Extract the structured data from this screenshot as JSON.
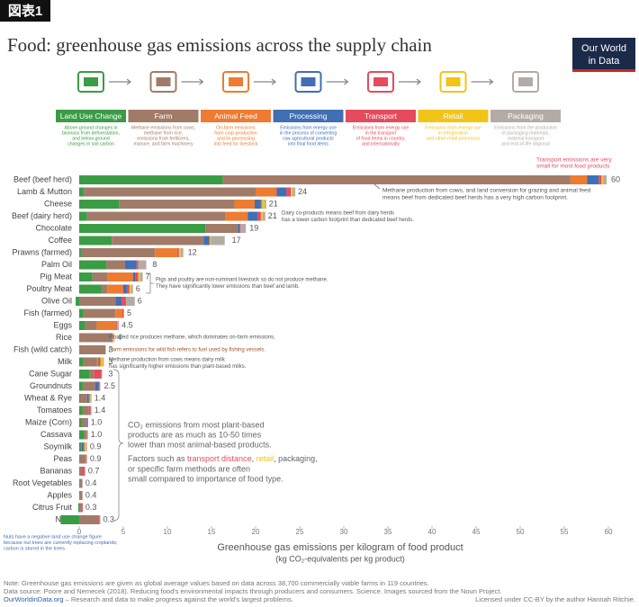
{
  "header": {
    "badge": "図表1",
    "title": "Food: greenhouse gas emissions across the supply chain",
    "logo_lines": [
      "Our World",
      "in Data"
    ]
  },
  "chart_data": {
    "type": "stacked-bar-horizontal",
    "categories": [
      "Beef (beef herd)",
      "Lamb & Mutton",
      "Cheese",
      "Beef (dairy herd)",
      "Chocolate",
      "Coffee",
      "Prawns (farmed)",
      "Palm Oil",
      "Pig Meat",
      "Poultry Meat",
      "Olive Oil",
      "Fish (farmed)",
      "Eggs",
      "Rice",
      "Fish (wild catch)",
      "Milk",
      "Cane Sugar",
      "Groundnuts",
      "Wheat & Rye",
      "Tomatoes",
      "Maize (Corn)",
      "Cassava",
      "Soymilk",
      "Peas",
      "Bananas",
      "Root Vegetables",
      "Apples",
      "Citrus Fruit",
      "Nuts"
    ],
    "series": [
      {
        "name": "Land Use Change",
        "color": "#3a9c44",
        "description": [
          "Above-ground changes in",
          "biomass from deforestation,",
          "and below-ground",
          "changes in soil carbon"
        ],
        "values": [
          16.3,
          0.5,
          4.5,
          0.9,
          14.3,
          3.7,
          0.2,
          3.1,
          1.5,
          2.5,
          -0.4,
          0.5,
          0.7,
          0,
          0,
          0.5,
          1.2,
          0.4,
          0.1,
          0.4,
          0.3,
          0.6,
          0.2,
          0,
          0,
          0,
          0,
          -0.1,
          -2.1
        ]
      },
      {
        "name": "Farm",
        "color": "#a17b68",
        "description": [
          "Methane emissions from cows,",
          "methane from rice,",
          "emissions from fertilizers,",
          "manure, and farm machinery"
        ],
        "values": [
          39.4,
          19.5,
          13.1,
          15.7,
          3.7,
          10.4,
          8.4,
          2.1,
          1.7,
          0.7,
          4.1,
          3.6,
          1.3,
          3.6,
          3.0,
          1.5,
          0.5,
          1.4,
          0.8,
          0.7,
          0.5,
          0.2,
          0.1,
          0.7,
          0.3,
          0.2,
          0.2,
          0.3,
          2.2
        ]
      },
      {
        "name": "Animal Feed",
        "color": "#ee7b30",
        "description": [
          "On-farm emissions",
          "from crop production",
          "and its processing",
          "into feed for livestock"
        ],
        "values": [
          1.9,
          2.4,
          2.3,
          2.5,
          0,
          0,
          2.5,
          0,
          2.9,
          1.8,
          0,
          0.8,
          2.2,
          0,
          0,
          0.2,
          0,
          0,
          0,
          0,
          0,
          0,
          0,
          0,
          0,
          0,
          0,
          0,
          0
        ]
      },
      {
        "name": "Processing",
        "color": "#3f6fb4",
        "description": [
          "Emissions from energy use",
          "in the process of converting",
          "raw agricultural products",
          "into final food items"
        ],
        "values": [
          1.3,
          1.1,
          0.7,
          1.1,
          0.2,
          0.6,
          0,
          1.3,
          0.3,
          0.4,
          0.7,
          0,
          0,
          0.1,
          0,
          0.1,
          0,
          0.4,
          0.2,
          0,
          0.1,
          0,
          0.2,
          0,
          0,
          0,
          0,
          0,
          0
        ]
      },
      {
        "name": "Transport",
        "color": "#e64b5d",
        "description": [
          "Emissions from energy use",
          "in the transport",
          "of food items in country,",
          "and internationally"
        ],
        "values": [
          0.3,
          0.5,
          0.1,
          0.4,
          0.1,
          0.1,
          0.2,
          0.2,
          0.3,
          0.3,
          0.5,
          0.1,
          0.1,
          0.1,
          0,
          0.1,
          0.8,
          0.1,
          0.1,
          0.2,
          0.1,
          0.1,
          0.1,
          0.1,
          0.3,
          0.1,
          0.1,
          0.1,
          0.1
        ]
      },
      {
        "name": "Retail",
        "color": "#f2c417",
        "description": [
          "Emissions from energy use",
          "in refrigeration",
          "and other retail processes"
        ],
        "values": [
          0.2,
          0.2,
          0.3,
          0.2,
          0,
          0.1,
          0.2,
          0,
          0.2,
          0.2,
          0,
          0,
          0,
          0.1,
          0,
          0.3,
          0,
          0,
          0.1,
          0,
          0,
          0,
          0.2,
          0,
          0,
          0,
          0,
          0,
          0
        ]
      },
      {
        "name": "Packaging",
        "color": "#b4aba6",
        "description": [
          "Emissions from the production",
          "of packaging materials,",
          "material transport",
          "and end-of-life disposal"
        ],
        "values": [
          0.4,
          0.3,
          0.2,
          0.3,
          0.6,
          1.6,
          0.3,
          0.9,
          0.3,
          0.2,
          1.0,
          0.1,
          0.2,
          0.1,
          0,
          0.1,
          0.1,
          0.1,
          0.1,
          0.1,
          0,
          0.1,
          0.1,
          0.1,
          0.1,
          0.1,
          0.1,
          0,
          0.1
        ]
      }
    ],
    "totals": [
      60,
      24,
      21,
      21,
      19,
      17,
      12,
      8,
      7,
      6,
      6,
      5,
      4.5,
      4,
      3,
      3,
      3,
      2.5,
      1.4,
      1.4,
      1.0,
      1.0,
      0.9,
      0.9,
      0.7,
      0.4,
      0.4,
      0.3,
      0.3
    ],
    "value_labels": [
      "60",
      "24",
      "21",
      "21",
      "19",
      "17",
      "12",
      "8",
      "7",
      "6",
      "6",
      "5",
      "4.5",
      "4",
      "3",
      "3",
      "3",
      "2.5",
      "1.4",
      "1.4",
      "1.0",
      "1.0",
      "0.9",
      "0.9",
      "0.7",
      "0.4",
      "0.4",
      "0.3",
      "0.3"
    ],
    "xlim": [
      -3,
      61
    ],
    "xticks": [
      0,
      5,
      10,
      15,
      20,
      25,
      30,
      35,
      40,
      45,
      50,
      55,
      60
    ],
    "grid": false,
    "x_label": [
      "Greenhouse gas emissions per kilogram of food product",
      "(kg CO₂-equivalents per kg product)"
    ],
    "annotations": [
      {
        "lines": [
          "Transport emissions are very",
          "small for most food products"
        ],
        "color": "#e64b5d"
      },
      {
        "lines": [
          "Methane production from cows, and land conversion for grazing and animal feed",
          "means beef from dedicated beef herds has a very high carbon footprint."
        ],
        "color": "#555555"
      },
      {
        "lines": [
          "Dairy co-products means beef from dairy herds",
          "has a lower carbon footprint than dedicated beef herds."
        ],
        "color": "#555555"
      },
      {
        "lines": [
          "Pigs and poultry are non-ruminant livestock so do not produce methane.",
          "They have significantly lower emissions than beef and lamb."
        ],
        "color": "#555555"
      },
      {
        "lines": [
          "Flooded rice produces methane, which dominates on-farm emissions."
        ],
        "color": "#555555"
      },
      {
        "lines": [
          "Farm emissions for wild fish refers to fuel used by fishing vessels."
        ],
        "color": "#a0522d"
      },
      {
        "lines": [
          "Methane production from cows means dairy milk",
          "has significantly higher emissions than plant-based milks."
        ],
        "color": "#555555"
      },
      {
        "lines": [
          "CO₂ emissions from most plant-based",
          "products are as much as 10-50 times",
          "lower than most animal-based products."
        ],
        "color": "#666666"
      },
      {
        "lines": [
          [
            "Factors such as ",
            "transport distance",
            ", ",
            "retail",
            ", packaging,"
          ],
          "or specific farm methods are often",
          "small compared to importance of food type."
        ],
        "color": "#666666",
        "highlight_colors": [
          "#e64b5d",
          "#f2c417"
        ]
      },
      {
        "lines": [
          "Nuts have a negative land use change figure",
          "because nut trees are currently replacing croplands;",
          "carbon is stored in the trees."
        ],
        "color": "#3f6fb4"
      }
    ]
  },
  "footer": {
    "note": "Note: Greenhouse gas emissions are given as global average values based on data across 38,700 commercially viable farms in 119 countries.",
    "source": "Data source: Poore and Nemecek (2018). Reducing food's environmental impacts through producers and consumers. Science. Images sourced from the Noun Project.",
    "site": "OurWorldinData.org",
    "tagline": " – Research and data to make progress against the world's largest problems.",
    "license": "Licensed under CC-BY by the author Hannah Ritchie."
  }
}
